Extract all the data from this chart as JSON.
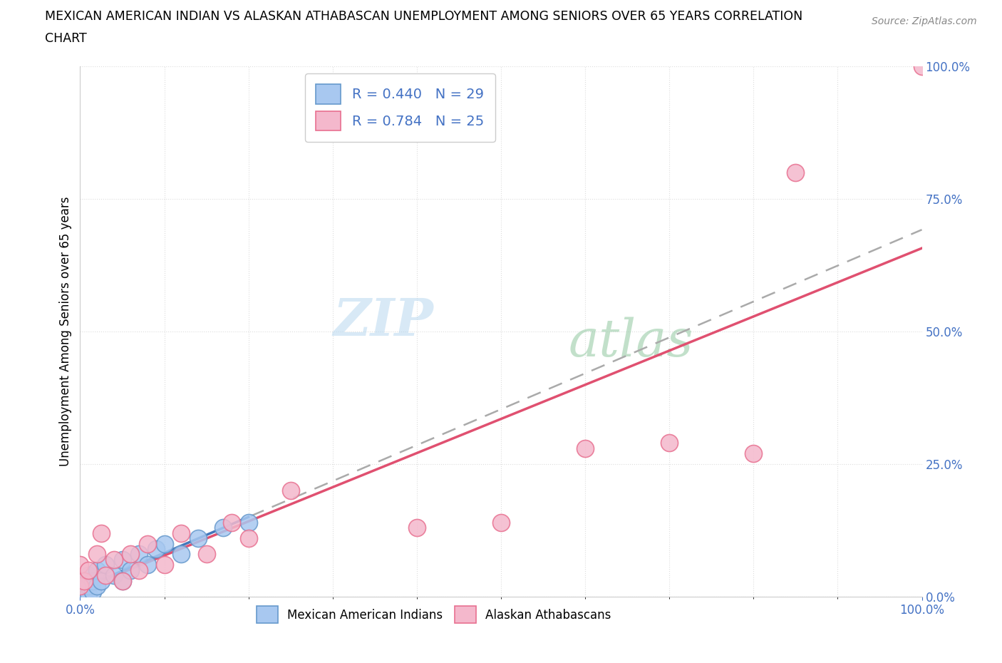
{
  "title_line1": "MEXICAN AMERICAN INDIAN VS ALASKAN ATHABASCAN UNEMPLOYMENT AMONG SENIORS OVER 65 YEARS CORRELATION",
  "title_line2": "CHART",
  "source_text": "Source: ZipAtlas.com",
  "ylabel": "Unemployment Among Seniors over 65 years",
  "xlim": [
    0,
    1.0
  ],
  "ylim": [
    0,
    1.0
  ],
  "ytick_labels": [
    "0.0%",
    "25.0%",
    "50.0%",
    "75.0%",
    "100.0%"
  ],
  "ytick_positions": [
    0.0,
    0.25,
    0.5,
    0.75,
    1.0
  ],
  "watermark_zip": "ZIP",
  "watermark_atlas": "atlas",
  "legend_label1": "R = 0.440   N = 29",
  "legend_label2": "R = 0.784   N = 25",
  "color_blue_fill": "#A8C8F0",
  "color_pink_fill": "#F4B8CC",
  "color_blue_edge": "#6699CC",
  "color_pink_edge": "#E87090",
  "color_blue_line": "#4477BB",
  "color_pink_line": "#E05070",
  "color_gray_dash": "#AAAAAA",
  "color_axis_text": "#4472C4",
  "blue_x": [
    0.0,
    0.0,
    0.0,
    0.0,
    0.0,
    0.005,
    0.005,
    0.007,
    0.01,
    0.01,
    0.01,
    0.015,
    0.015,
    0.02,
    0.02,
    0.025,
    0.03,
    0.04,
    0.05,
    0.05,
    0.06,
    0.07,
    0.08,
    0.09,
    0.1,
    0.12,
    0.14,
    0.17,
    0.2
  ],
  "blue_y": [
    0.0,
    0.005,
    0.01,
    0.02,
    0.03,
    0.0,
    0.01,
    0.02,
    0.005,
    0.02,
    0.04,
    0.01,
    0.03,
    0.02,
    0.05,
    0.03,
    0.06,
    0.04,
    0.03,
    0.07,
    0.05,
    0.08,
    0.06,
    0.09,
    0.1,
    0.08,
    0.11,
    0.13,
    0.14
  ],
  "pink_x": [
    0.0,
    0.0,
    0.005,
    0.01,
    0.02,
    0.025,
    0.03,
    0.04,
    0.05,
    0.06,
    0.07,
    0.08,
    0.1,
    0.12,
    0.15,
    0.18,
    0.2,
    0.25,
    0.4,
    0.5,
    0.6,
    0.7,
    0.8,
    0.85,
    1.0
  ],
  "pink_y": [
    0.02,
    0.06,
    0.03,
    0.05,
    0.08,
    0.12,
    0.04,
    0.07,
    0.03,
    0.08,
    0.05,
    0.1,
    0.06,
    0.12,
    0.08,
    0.14,
    0.11,
    0.2,
    0.13,
    0.14,
    0.28,
    0.29,
    0.27,
    0.8,
    1.0
  ]
}
